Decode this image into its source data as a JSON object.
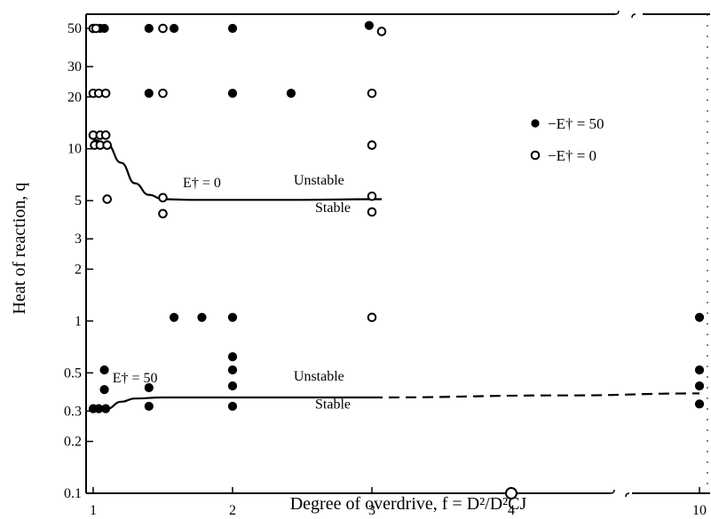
{
  "chart_data": {
    "type": "scatter",
    "xlabel": "Degree of overdrive, f = D²/D²CJ",
    "ylabel": "Heat of reaction, q",
    "x_scale": "linear (broken between ~4.6 and 10)",
    "y_scale": "log",
    "xlim": [
      1,
      10
    ],
    "ylim": [
      0.1,
      50
    ],
    "x_ticks": [
      "1",
      "2",
      "3",
      "4",
      "10"
    ],
    "y_ticks": [
      "0.1",
      "0.2",
      "0.3",
      "0.5",
      "1",
      "2",
      "3",
      "5",
      "10",
      "20",
      "30",
      "50"
    ],
    "x_tick_values": [
      1,
      2,
      3,
      4,
      10
    ],
    "y_tick_values": [
      0.1,
      0.2,
      0.3,
      0.5,
      1,
      2,
      3,
      5,
      10,
      20,
      30,
      50
    ],
    "legend": {
      "position": "right",
      "entries": [
        {
          "label": "−E† = 50",
          "marker": "filled-circle"
        },
        {
          "label": "−E† = 0",
          "marker": "open-circle"
        }
      ]
    },
    "series": [
      {
        "name": "−E† = 50",
        "marker": "filled",
        "points": [
          [
            1.0,
            50
          ],
          [
            1.05,
            50
          ],
          [
            1.08,
            50
          ],
          [
            1.4,
            50
          ],
          [
            1.58,
            50
          ],
          [
            2.0,
            50
          ],
          [
            2.98,
            52
          ],
          [
            1.4,
            21
          ],
          [
            2.0,
            21
          ],
          [
            2.42,
            21
          ],
          [
            1.58,
            1.05
          ],
          [
            1.78,
            1.05
          ],
          [
            2.0,
            1.05
          ],
          [
            2.0,
            0.62
          ],
          [
            2.0,
            0.52
          ],
          [
            2.0,
            0.42
          ],
          [
            2.0,
            0.32
          ],
          [
            1.08,
            0.52
          ],
          [
            1.08,
            0.4
          ],
          [
            1.0,
            0.31
          ],
          [
            1.04,
            0.31
          ],
          [
            1.09,
            0.31
          ],
          [
            1.4,
            0.41
          ],
          [
            1.4,
            0.32
          ],
          [
            10.0,
            1.05
          ],
          [
            10.0,
            0.52
          ],
          [
            10.0,
            0.42
          ],
          [
            10.0,
            0.33
          ]
        ]
      },
      {
        "name": "−E† = 0",
        "marker": "open",
        "points": [
          [
            1.0,
            50
          ],
          [
            1.02,
            50
          ],
          [
            1.5,
            50
          ],
          [
            3.07,
            48
          ],
          [
            1.0,
            21
          ],
          [
            1.04,
            21
          ],
          [
            1.09,
            21
          ],
          [
            1.5,
            21
          ],
          [
            3.0,
            21
          ],
          [
            1.0,
            12
          ],
          [
            1.05,
            12
          ],
          [
            1.09,
            12
          ],
          [
            1.01,
            10.5
          ],
          [
            1.05,
            10.5
          ],
          [
            1.1,
            10.5
          ],
          [
            3.0,
            10.5
          ],
          [
            1.1,
            5.1
          ],
          [
            1.5,
            5.2
          ],
          [
            1.5,
            4.2
          ],
          [
            3.0,
            5.3
          ],
          [
            3.0,
            4.3
          ],
          [
            3.0,
            1.05
          ],
          [
            4.0,
            0.1
          ]
        ]
      }
    ],
    "curves": [
      {
        "name": "E† = 0",
        "style": "solid",
        "points": [
          [
            1.0,
            11.3
          ],
          [
            1.1,
            10.6
          ],
          [
            1.2,
            8.3
          ],
          [
            1.3,
            6.3
          ],
          [
            1.4,
            5.4
          ],
          [
            1.5,
            5.1
          ],
          [
            1.7,
            5.05
          ],
          [
            2.0,
            5.05
          ],
          [
            2.5,
            5.05
          ],
          [
            3.0,
            5.1
          ],
          [
            3.07,
            5.1
          ]
        ]
      },
      {
        "name": "E† = 50",
        "style": "solid",
        "points": [
          [
            1.0,
            0.3
          ],
          [
            1.1,
            0.31
          ],
          [
            1.2,
            0.34
          ],
          [
            1.3,
            0.355
          ],
          [
            1.5,
            0.36
          ],
          [
            2.0,
            0.36
          ],
          [
            2.5,
            0.36
          ],
          [
            3.0,
            0.36
          ]
        ]
      },
      {
        "name": "",
        "style": "dashed",
        "points": [
          [
            3.0,
            0.36
          ],
          [
            4.4,
            0.37
          ],
          [
            10.0,
            0.38
          ]
        ]
      }
    ],
    "annotations": [
      {
        "text": "E† = 0",
        "x": 1.78,
        "y": 6.0
      },
      {
        "text": "Unstable",
        "x": 2.62,
        "y": 6.2
      },
      {
        "text": "Stable",
        "x": 2.72,
        "y": 4.3
      },
      {
        "text": "E† = 50",
        "x": 1.3,
        "y": 0.44
      },
      {
        "text": "Unstable",
        "x": 2.62,
        "y": 0.45
      },
      {
        "text": "Stable",
        "x": 2.72,
        "y": 0.31
      }
    ]
  }
}
